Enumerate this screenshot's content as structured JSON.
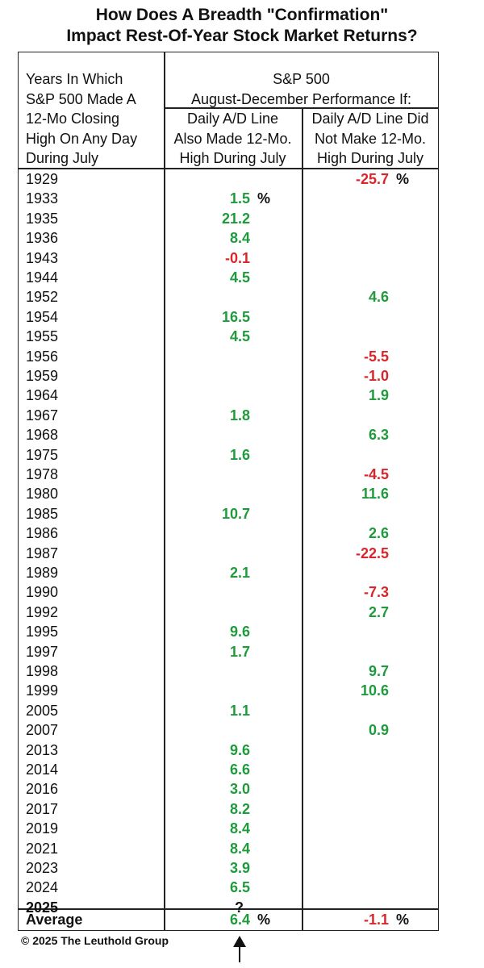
{
  "title": {
    "line1": "How Does A Breadth \"Confirmation\"",
    "line2": "Impact Rest-Of-Year Stock Market Returns?"
  },
  "header": {
    "col1": [
      "Years In Which",
      "S&P 500 Made A",
      "12-Mo Closing",
      "High On Any Day",
      "During July"
    ],
    "group": [
      "S&P 500",
      "August-December Performance If:"
    ],
    "col2": [
      "Daily A/D Line",
      "Also Made 12-Mo.",
      "High During July"
    ],
    "col3": [
      "Daily A/D Line Did",
      "Not Make 12-Mo.",
      "High During July"
    ]
  },
  "footer": "© 2025 The Leuthold Group",
  "colors": {
    "positive": "#1f9a3c",
    "negative": "#d9262b",
    "text": "#111111"
  },
  "arrow_icon": "up-arrow-icon",
  "chart_data": {
    "type": "table",
    "columns": [
      "Year",
      "Daily A/D Line Also Made 12-Mo. High During July",
      "Daily A/D Line Did Not Make 12-Mo. High During July"
    ],
    "unit": "%",
    "rows": [
      {
        "year": "1929",
        "also": null,
        "not": -25.7
      },
      {
        "year": "1933",
        "also": 1.5,
        "not": null
      },
      {
        "year": "1935",
        "also": 21.2,
        "not": null
      },
      {
        "year": "1936",
        "also": 8.4,
        "not": null
      },
      {
        "year": "1943",
        "also": -0.1,
        "not": null
      },
      {
        "year": "1944",
        "also": 4.5,
        "not": null
      },
      {
        "year": "1952",
        "also": null,
        "not": 4.6
      },
      {
        "year": "1954",
        "also": 16.5,
        "not": null
      },
      {
        "year": "1955",
        "also": 4.5,
        "not": null
      },
      {
        "year": "1956",
        "also": null,
        "not": -5.5
      },
      {
        "year": "1959",
        "also": null,
        "not": -1.0
      },
      {
        "year": "1964",
        "also": null,
        "not": 1.9
      },
      {
        "year": "1967",
        "also": 1.8,
        "not": null
      },
      {
        "year": "1968",
        "also": null,
        "not": 6.3
      },
      {
        "year": "1975",
        "also": 1.6,
        "not": null
      },
      {
        "year": "1978",
        "also": null,
        "not": -4.5
      },
      {
        "year": "1980",
        "also": null,
        "not": 11.6
      },
      {
        "year": "1985",
        "also": 10.7,
        "not": null
      },
      {
        "year": "1986",
        "also": null,
        "not": 2.6
      },
      {
        "year": "1987",
        "also": null,
        "not": -22.5
      },
      {
        "year": "1989",
        "also": 2.1,
        "not": null
      },
      {
        "year": "1990",
        "also": null,
        "not": -7.3
      },
      {
        "year": "1992",
        "also": null,
        "not": 2.7
      },
      {
        "year": "1995",
        "also": 9.6,
        "not": null
      },
      {
        "year": "1997",
        "also": 1.7,
        "not": null
      },
      {
        "year": "1998",
        "also": null,
        "not": 9.7
      },
      {
        "year": "1999",
        "also": null,
        "not": 10.6
      },
      {
        "year": "2005",
        "also": 1.1,
        "not": null
      },
      {
        "year": "2007",
        "also": null,
        "not": 0.9
      },
      {
        "year": "2013",
        "also": 9.6,
        "not": null
      },
      {
        "year": "2014",
        "also": 6.6,
        "not": null
      },
      {
        "year": "2016",
        "also": 3.0,
        "not": null
      },
      {
        "year": "2017",
        "also": 8.2,
        "not": null
      },
      {
        "year": "2019",
        "also": 8.4,
        "not": null
      },
      {
        "year": "2021",
        "also": 8.4,
        "not": null
      },
      {
        "year": "2023",
        "also": 3.9,
        "not": null
      },
      {
        "year": "2024",
        "also": 6.5,
        "not": null
      },
      {
        "year": "2025",
        "also": "?",
        "not": null,
        "bold": true
      }
    ],
    "average": {
      "label": "Average",
      "also": 6.4,
      "not": -1.1
    },
    "pct_marks": {
      "first_row_year": "1929",
      "second_row_year": "1933"
    }
  }
}
